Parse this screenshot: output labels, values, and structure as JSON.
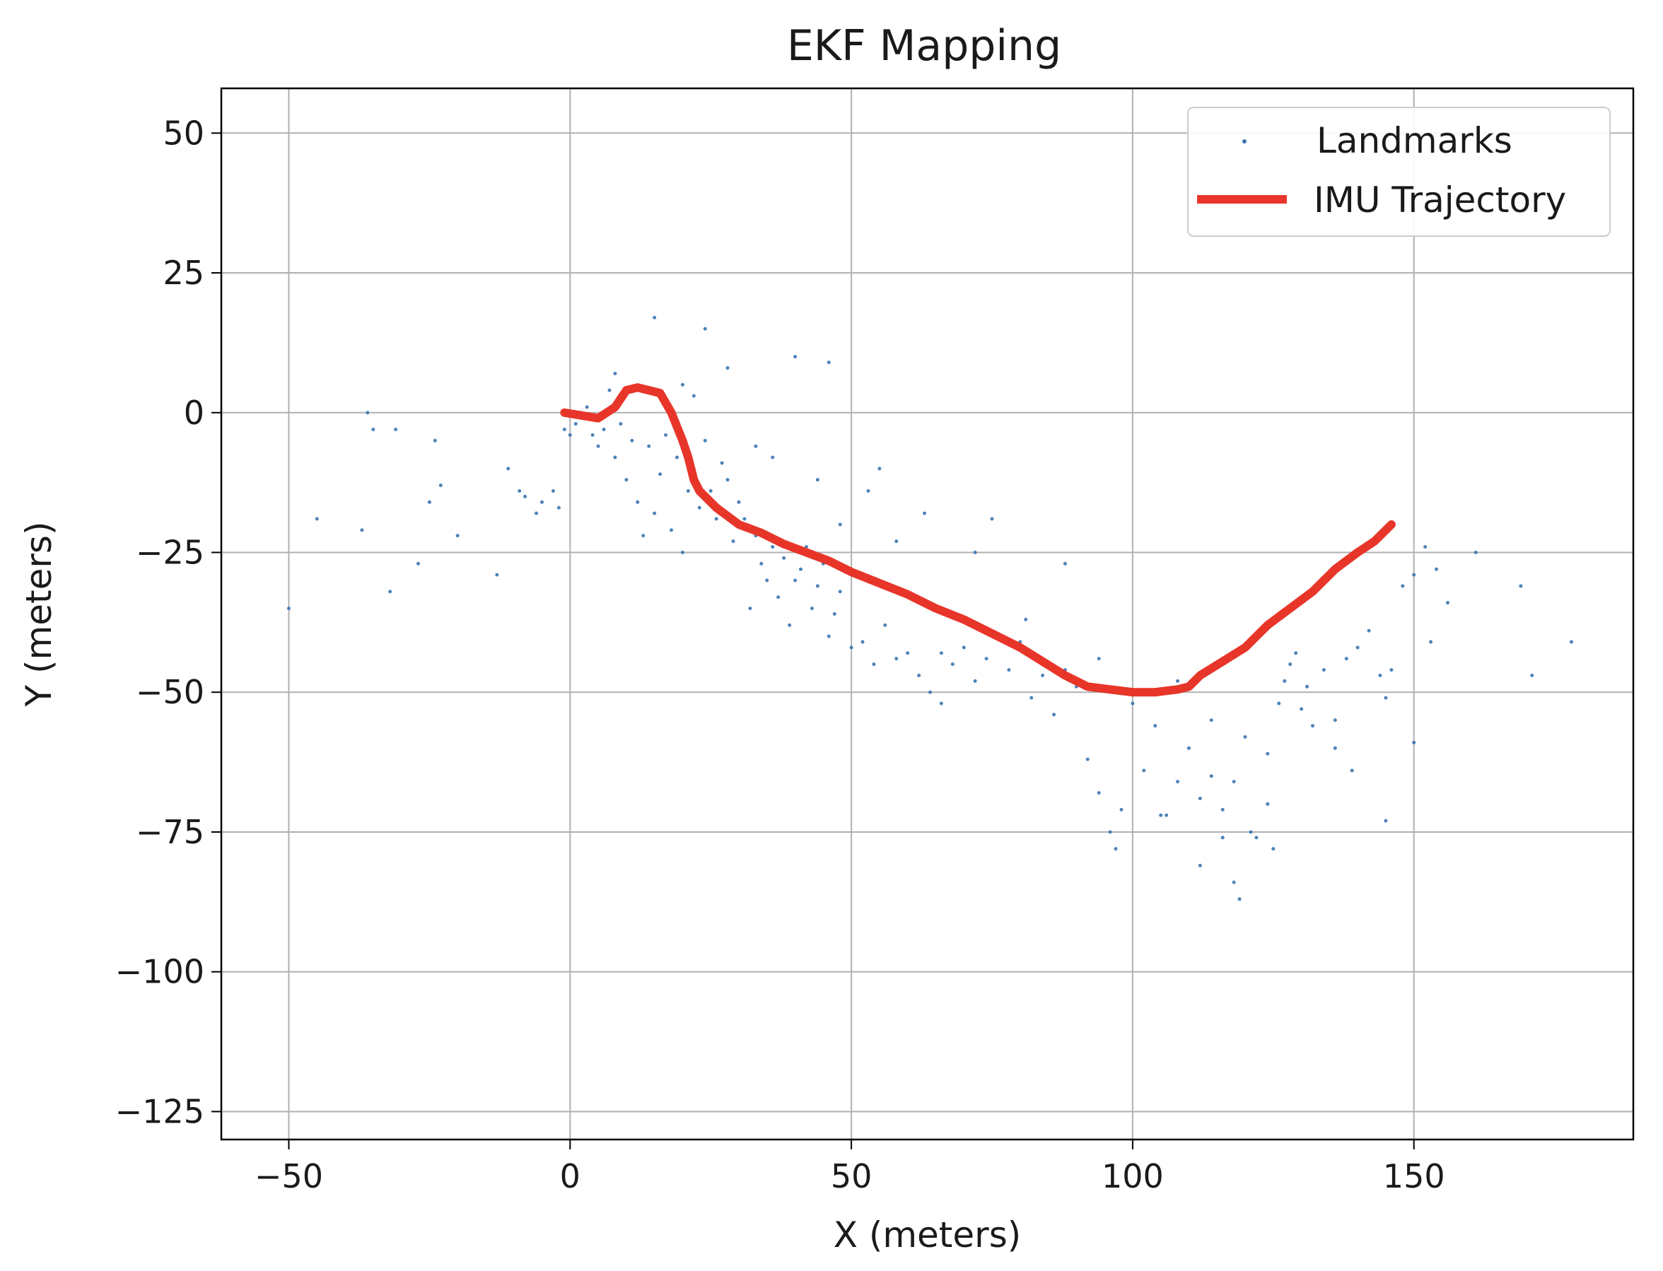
{
  "chart_data": {
    "type": "scatter",
    "title": "EKF Mapping",
    "xlabel": "X (meters)",
    "ylabel": "Y (meters)",
    "xlim": [
      -62,
      189
    ],
    "ylim": [
      -130,
      58
    ],
    "xticks": [
      -50,
      0,
      50,
      100,
      150
    ],
    "yticks": [
      50,
      25,
      0,
      -25,
      -50,
      -75,
      -100,
      -125
    ],
    "xtick_labels": [
      "−50",
      "0",
      "50",
      "100",
      "150"
    ],
    "ytick_labels": [
      "50",
      "25",
      "0",
      "−25",
      "−50",
      "−75",
      "−100",
      "−125"
    ],
    "grid": true,
    "legend_position": "top-right",
    "series": [
      {
        "name": "Landmarks",
        "kind": "scatter",
        "color": "#3a75b0",
        "x": [
          -50,
          -45,
          -37,
          -36,
          -35,
          -32,
          -31,
          -27,
          -25,
          -24,
          -23,
          -20,
          -13,
          -11,
          -9,
          -8,
          -6,
          -5,
          -3,
          -2,
          -1,
          0,
          1,
          2,
          3,
          4,
          5,
          6,
          7,
          8,
          9,
          10,
          11,
          12,
          13,
          14,
          15,
          16,
          17,
          18,
          19,
          20,
          21,
          22,
          23,
          24,
          25,
          26,
          27,
          28,
          29,
          30,
          31,
          32,
          33,
          34,
          35,
          36,
          37,
          38,
          39,
          40,
          41,
          42,
          43,
          44,
          45,
          46,
          47,
          48,
          50,
          52,
          54,
          56,
          58,
          60,
          62,
          64,
          66,
          68,
          70,
          72,
          74,
          76,
          78,
          80,
          82,
          84,
          86,
          88,
          90,
          92,
          94,
          96,
          98,
          100,
          102,
          104,
          106,
          108,
          110,
          112,
          114,
          116,
          118,
          120,
          122,
          124,
          126,
          127,
          128,
          129,
          130,
          131,
          132,
          134,
          136,
          138,
          140,
          142,
          144,
          145,
          146,
          148,
          150,
          152,
          154,
          156,
          161,
          169,
          171,
          178,
          15,
          24,
          40,
          46,
          55,
          63,
          66,
          75,
          100,
          105,
          114,
          118,
          119,
          125,
          145,
          150,
          8,
          20,
          22,
          28,
          33,
          36,
          44,
          48,
          53,
          58,
          72,
          81,
          88,
          94,
          97,
          108,
          112,
          116,
          121,
          124,
          136,
          139,
          153
        ],
        "y": [
          -35,
          -19,
          -21,
          0,
          -3,
          -32,
          -3,
          -27,
          -16,
          -5,
          -13,
          -22,
          -29,
          -10,
          -14,
          -15,
          -18,
          -16,
          -14,
          -17,
          -3,
          -4,
          -2,
          0,
          1,
          -4,
          -6,
          -3,
          4,
          -8,
          -2,
          -12,
          -5,
          -16,
          -22,
          -6,
          -18,
          -11,
          -4,
          -21,
          -8,
          -25,
          -14,
          -10,
          -17,
          -5,
          -14,
          -19,
          -9,
          -12,
          -23,
          -16,
          -19,
          -35,
          -22,
          -27,
          -30,
          -24,
          -33,
          -26,
          -38,
          -30,
          -28,
          -24,
          -35,
          -31,
          -27,
          -40,
          -36,
          -32,
          -42,
          -41,
          -45,
          -38,
          -44,
          -43,
          -47,
          -50,
          -43,
          -45,
          -42,
          -48,
          -44,
          -40,
          -46,
          -41,
          -51,
          -47,
          -54,
          -46,
          -49,
          -62,
          -68,
          -75,
          -71,
          -52,
          -64,
          -56,
          -72,
          -48,
          -60,
          -69,
          -55,
          -71,
          -66,
          -58,
          -76,
          -61,
          -52,
          -48,
          -45,
          -43,
          -53,
          -49,
          -56,
          -46,
          -60,
          -44,
          -42,
          -39,
          -47,
          -51,
          -46,
          -31,
          -29,
          -24,
          -28,
          -34,
          -25,
          -31,
          -47,
          -41,
          17,
          15,
          10,
          9,
          -10,
          -18,
          -52,
          -19,
          -50,
          -72,
          -65,
          -84,
          -87,
          -78,
          -73,
          -59,
          7,
          5,
          3,
          8,
          -6,
          -8,
          -12,
          -20,
          -14,
          -23,
          -25,
          -37,
          -27,
          -44,
          -78,
          -66,
          -81,
          -76,
          -75,
          -70,
          -55,
          -64,
          -41
        ],
        "marker_size": 2.5
      },
      {
        "name": "IMU Trajectory",
        "kind": "line",
        "color": "#e8352a",
        "x": [
          -1,
          2,
          5,
          8,
          10,
          12,
          14,
          16,
          18,
          20,
          21,
          22,
          23,
          24,
          26,
          28,
          30,
          34,
          38,
          42,
          46,
          50,
          55,
          60,
          65,
          70,
          75,
          80,
          84,
          88,
          92,
          96,
          100,
          104,
          108,
          110,
          112,
          116,
          120,
          124,
          128,
          132,
          136,
          140,
          143,
          146
        ],
        "y": [
          0,
          -0.5,
          -1,
          1,
          4,
          4.5,
          4,
          3.5,
          0,
          -5,
          -8,
          -12,
          -14,
          -15,
          -17,
          -18.5,
          -20,
          -21.5,
          -23.5,
          -25,
          -26.5,
          -28.5,
          -30.5,
          -32.5,
          -35,
          -37,
          -39.5,
          -42,
          -44.5,
          -47,
          -49,
          -49.5,
          -50,
          -50,
          -49.5,
          -49,
          -47,
          -44.5,
          -42,
          -38,
          -35,
          -32,
          -28,
          -25,
          -23,
          -20
        ],
        "line_width": 5
      }
    ]
  }
}
